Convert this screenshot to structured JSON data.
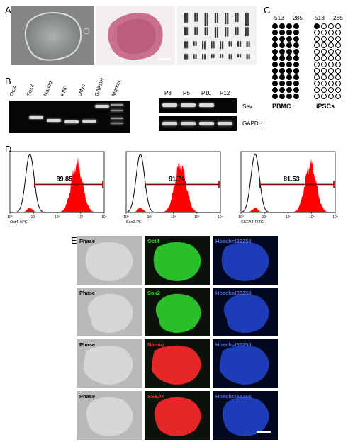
{
  "panels": {
    "a": "A",
    "b": "B",
    "c": "C",
    "d": "D",
    "e": "E"
  },
  "b": {
    "lanes_left": [
      "Oct4",
      "Sox2",
      "Nanog",
      "Klf4",
      "cMyc",
      "GAPDH",
      "Marker"
    ],
    "lanes_right": [
      "P3",
      "P5",
      "P10",
      "P12"
    ],
    "row1": "Sev",
    "row2": "GAPDH"
  },
  "c": {
    "pos1": "-513",
    "pos2": "-285",
    "group1": "PBMC",
    "group2": "iPSCs",
    "pbmc_rows": [
      [
        1,
        1,
        1,
        1
      ],
      [
        1,
        1,
        1,
        1
      ],
      [
        1,
        1,
        1,
        1
      ],
      [
        1,
        1,
        1,
        1
      ],
      [
        1,
        1,
        1,
        1
      ],
      [
        1,
        1,
        1,
        1
      ],
      [
        1,
        1,
        1,
        1
      ],
      [
        1,
        1,
        1,
        1
      ],
      [
        1,
        1,
        1,
        1
      ],
      [
        1,
        1,
        1,
        1
      ],
      [
        1,
        1,
        1,
        1
      ],
      [
        1,
        1,
        1,
        1
      ]
    ],
    "ipsc_rows": [
      [
        1,
        0,
        0,
        0
      ],
      [
        0,
        0,
        0,
        0
      ],
      [
        0,
        0,
        0,
        0
      ],
      [
        0,
        0,
        0,
        0
      ],
      [
        0,
        0,
        0,
        0
      ],
      [
        0,
        0,
        0,
        0
      ],
      [
        0,
        0,
        0,
        0
      ],
      [
        0,
        0,
        0,
        0
      ],
      [
        0,
        0,
        0,
        0
      ],
      [
        0,
        0,
        0,
        0
      ],
      [
        0,
        0,
        0,
        0
      ],
      [
        0,
        0,
        0,
        0
      ]
    ]
  },
  "chart_data": [
    {
      "type": "area",
      "xlabel": "Oct4-APC",
      "percent_label": "89.85",
      "xscale": "log",
      "xlim": [
        1,
        10000
      ],
      "ticks": [
        "10⁰",
        "10¹",
        "10²",
        "10³",
        "10⁴"
      ],
      "peak_control": 7,
      "peak_sample": 700
    },
    {
      "type": "area",
      "xlabel": "Sox2-PE",
      "percent_label": "91.74",
      "xscale": "log",
      "xlim": [
        1,
        10000
      ],
      "ticks": [
        "10⁰",
        "10¹",
        "10²",
        "10³",
        "10⁴"
      ],
      "peak_control": 4,
      "peak_sample": 200
    },
    {
      "type": "area",
      "xlabel": "SSEA4-FITC",
      "percent_label": "81.53",
      "xscale": "log",
      "xlim": [
        1,
        10000
      ],
      "ticks": [
        "10⁰",
        "10¹",
        "10²",
        "10³",
        "10⁴"
      ],
      "peak_control": 4,
      "peak_sample": 900
    }
  ],
  "e": {
    "rows": [
      {
        "phase": "Phase",
        "marker": "Oct4",
        "marker_color": "#2fd22f",
        "stain": "Hoechst33258"
      },
      {
        "phase": "Phase",
        "marker": "Sox2",
        "marker_color": "#2fd22f",
        "stain": "Hoechst33258"
      },
      {
        "phase": "Phase",
        "marker": "Nanog",
        "marker_color": "#ff2a2a",
        "stain": "Hoechst33258"
      },
      {
        "phase": "Phase",
        "marker": "SSEA4",
        "marker_color": "#ff2a2a",
        "stain": "Hoechst33258"
      }
    ]
  }
}
